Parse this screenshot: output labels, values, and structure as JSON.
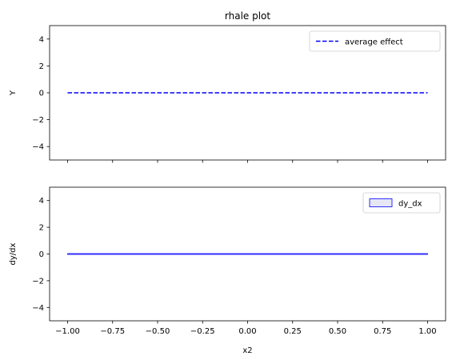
{
  "chart_data": [
    {
      "type": "line",
      "title": "rhale plot",
      "xlabel": "",
      "ylabel": "Y",
      "xlim": [
        -1.1,
        1.1
      ],
      "ylim": [
        -5,
        5
      ],
      "yticks": [
        4,
        2,
        0,
        -2,
        -4
      ],
      "ytick_labels": [
        "4",
        "2",
        "0",
        "−2",
        "−4"
      ],
      "xtick_labels_shown": false,
      "grid": false,
      "legend_position": "top-right",
      "series": [
        {
          "name": "average effect",
          "style": "dashed",
          "color": "#0000ff",
          "x": [
            -1.0,
            1.0
          ],
          "y": [
            0,
            0
          ]
        }
      ]
    },
    {
      "type": "line",
      "title": "",
      "xlabel": "x2",
      "ylabel": "dy/dx",
      "xlim": [
        -1.1,
        1.1
      ],
      "ylim": [
        -5,
        5
      ],
      "xticks": [
        -1.0,
        -0.75,
        -0.5,
        -0.25,
        0.0,
        0.25,
        0.5,
        0.75,
        1.0
      ],
      "xtick_labels": [
        "−1.00",
        "−0.75",
        "−0.50",
        "−0.25",
        "0.00",
        "0.25",
        "0.50",
        "0.75",
        "1.00"
      ],
      "yticks": [
        4,
        2,
        0,
        -2,
        -4
      ],
      "ytick_labels": [
        "4",
        "2",
        "0",
        "−2",
        "−4"
      ],
      "grid": false,
      "legend_position": "top-right",
      "series": [
        {
          "name": "dy_dx",
          "style": "band",
          "color": "#0000ff",
          "fill": "#e6e6f5",
          "x": [
            -1.0,
            1.0
          ],
          "y": [
            0,
            0
          ]
        }
      ]
    }
  ]
}
